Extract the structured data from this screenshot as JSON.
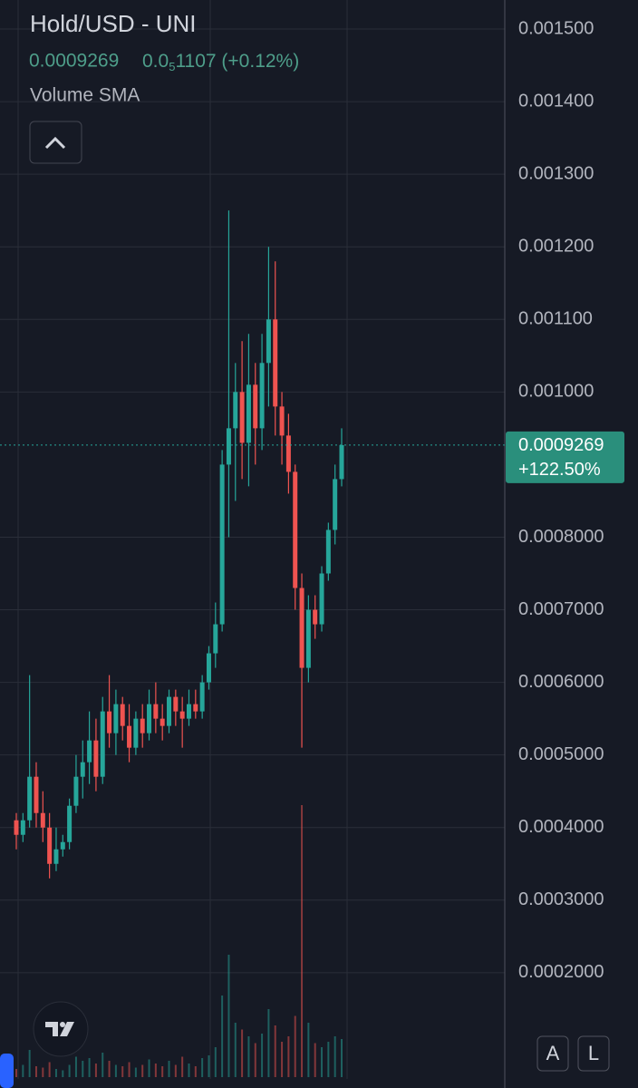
{
  "chart_data": {
    "type": "candlestick",
    "title": "Hold/USD - UNI",
    "price": "0.0009269",
    "change": {
      "prefix": "0.0",
      "subscript": "5",
      "rest": "1107 (+0.12%)"
    },
    "indicator": "Volume SMA",
    "last_price": 0.0009269,
    "last_price_label": "0.0009269",
    "last_change_label": "+122.50%",
    "buttons": [
      "A",
      "L"
    ],
    "up_color": "#26a69a",
    "down_color": "#ef5350",
    "ylim": [
      5.37e-05,
      0.00154
    ],
    "yticks": [
      {
        "value": 0.0015,
        "label": "0.001500"
      },
      {
        "value": 0.0014,
        "label": "0.001400"
      },
      {
        "value": 0.0013,
        "label": "0.001300"
      },
      {
        "value": 0.0012,
        "label": "0.001200"
      },
      {
        "value": 0.0011,
        "label": "0.001100"
      },
      {
        "value": 0.001,
        "label": "0.001000"
      },
      {
        "value": 0.0008,
        "label": "0.0008000"
      },
      {
        "value": 0.0007,
        "label": "0.0007000"
      },
      {
        "value": 0.0006,
        "label": "0.0006000"
      },
      {
        "value": 0.0005,
        "label": "0.0005000"
      },
      {
        "value": 0.0004,
        "label": "0.0004000"
      },
      {
        "value": 0.0003,
        "label": "0.0003000"
      },
      {
        "value": 0.0002,
        "label": "0.0002000"
      }
    ],
    "grid": true,
    "ohlc": [
      [
        0.00041,
        0.00042,
        0.00037,
        0.00039
      ],
      [
        0.00039,
        0.00042,
        0.00038,
        0.00041
      ],
      [
        0.00041,
        0.00061,
        0.0004,
        0.00047
      ],
      [
        0.00047,
        0.00049,
        0.0004,
        0.00042
      ],
      [
        0.00042,
        0.00045,
        0.00038,
        0.0004
      ],
      [
        0.0004,
        0.00042,
        0.00033,
        0.00035
      ],
      [
        0.00035,
        0.0004,
        0.00034,
        0.00037
      ],
      [
        0.00037,
        0.00039,
        0.00036,
        0.00038
      ],
      [
        0.00038,
        0.00044,
        0.00037,
        0.00043
      ],
      [
        0.00043,
        0.0005,
        0.00042,
        0.00047
      ],
      [
        0.00047,
        0.00052,
        0.00044,
        0.00049
      ],
      [
        0.00049,
        0.00056,
        0.00046,
        0.00052
      ],
      [
        0.00052,
        0.00055,
        0.00045,
        0.00047
      ],
      [
        0.00047,
        0.00058,
        0.00046,
        0.00056
      ],
      [
        0.00056,
        0.00061,
        0.00051,
        0.00053
      ],
      [
        0.00053,
        0.00059,
        0.0005,
        0.00057
      ],
      [
        0.00057,
        0.00058,
        0.00052,
        0.00054
      ],
      [
        0.00054,
        0.00057,
        0.00049,
        0.00051
      ],
      [
        0.00051,
        0.00056,
        0.0005,
        0.00055
      ],
      [
        0.00055,
        0.00057,
        0.00051,
        0.00053
      ],
      [
        0.00053,
        0.00059,
        0.00052,
        0.00057
      ],
      [
        0.00057,
        0.0006,
        0.00053,
        0.00055
      ],
      [
        0.00055,
        0.00057,
        0.00052,
        0.00054
      ],
      [
        0.00054,
        0.00059,
        0.00053,
        0.00058
      ],
      [
        0.00058,
        0.00059,
        0.00054,
        0.00056
      ],
      [
        0.00056,
        0.00058,
        0.00051,
        0.00055
      ],
      [
        0.00055,
        0.00059,
        0.00054,
        0.00057
      ],
      [
        0.00057,
        0.00059,
        0.00055,
        0.00056
      ],
      [
        0.00056,
        0.00061,
        0.00055,
        0.0006
      ],
      [
        0.0006,
        0.00065,
        0.00059,
        0.00064
      ],
      [
        0.00064,
        0.00071,
        0.00062,
        0.00068
      ],
      [
        0.00068,
        0.00092,
        0.00067,
        0.0009
      ],
      [
        0.0009,
        0.00125,
        0.0008,
        0.00095
      ],
      [
        0.00095,
        0.00104,
        0.00085,
        0.001
      ],
      [
        0.001,
        0.00107,
        0.00088,
        0.00093
      ],
      [
        0.00093,
        0.00108,
        0.00087,
        0.00101
      ],
      [
        0.00101,
        0.00104,
        0.0009,
        0.00095
      ],
      [
        0.00095,
        0.00108,
        0.00092,
        0.00104
      ],
      [
        0.00104,
        0.0012,
        0.00098,
        0.0011
      ],
      [
        0.0011,
        0.00118,
        0.00094,
        0.00098
      ],
      [
        0.00098,
        0.001,
        0.0009,
        0.00094
      ],
      [
        0.00094,
        0.00097,
        0.00086,
        0.00089
      ],
      [
        0.00089,
        0.0009,
        0.0007,
        0.00073
      ],
      [
        0.00073,
        0.00075,
        0.00051,
        0.00062
      ],
      [
        0.00062,
        0.00072,
        0.0006,
        0.0007
      ],
      [
        0.0007,
        0.00072,
        0.00066,
        0.00068
      ],
      [
        0.00068,
        0.00076,
        0.00067,
        0.00075
      ],
      [
        0.00075,
        0.00082,
        0.00074,
        0.00081
      ],
      [
        0.00081,
        0.0009,
        0.00079,
        0.00088
      ],
      [
        0.00088,
        0.00095,
        0.00087,
        0.0009269
      ]
    ],
    "volume": [
      60,
      90,
      200,
      80,
      70,
      110,
      60,
      50,
      90,
      150,
      120,
      140,
      100,
      180,
      120,
      90,
      80,
      110,
      70,
      90,
      130,
      100,
      80,
      120,
      90,
      150,
      100,
      80,
      140,
      160,
      220,
      600,
      900,
      400,
      350,
      300,
      250,
      320,
      500,
      380,
      260,
      300,
      450,
      2000,
      400,
      250,
      220,
      260,
      300,
      280
    ],
    "volume_lim": [
      0,
      2000
    ]
  }
}
